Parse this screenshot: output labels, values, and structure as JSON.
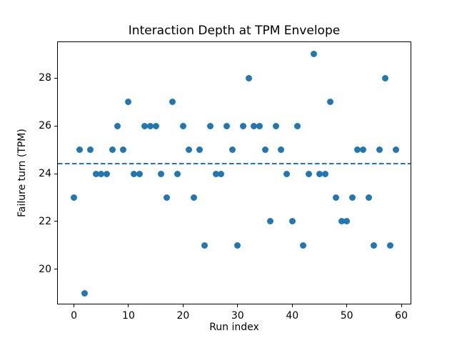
{
  "chart_data": {
    "type": "scatter",
    "title": "Interaction Depth at TPM Envelope",
    "xlabel": "Run index",
    "ylabel": "Failure turn (TPM)",
    "xlim": [
      -2.95,
      61.95
    ],
    "ylim": [
      18.5,
      29.5
    ],
    "xticks": [
      0,
      10,
      20,
      30,
      40,
      50,
      60
    ],
    "yticks": [
      20,
      22,
      24,
      26,
      28
    ],
    "grid": false,
    "legend": false,
    "marker_color": "#1f77b4",
    "marker_diameter_px": 9,
    "x": [
      0,
      1,
      2,
      3,
      4,
      5,
      6,
      7,
      8,
      9,
      10,
      11,
      12,
      13,
      14,
      15,
      16,
      17,
      18,
      19,
      20,
      21,
      22,
      23,
      24,
      25,
      26,
      27,
      28,
      29,
      30,
      31,
      32,
      33,
      34,
      35,
      36,
      37,
      38,
      39,
      40,
      41,
      42,
      43,
      44,
      45,
      46,
      47,
      48,
      49,
      50,
      51,
      52,
      53,
      54,
      55,
      56,
      57,
      58,
      59
    ],
    "y": [
      23,
      25,
      19,
      25,
      24,
      24,
      24,
      25,
      26,
      25,
      27,
      24,
      24,
      26,
      26,
      26,
      24,
      23,
      27,
      24,
      26,
      25,
      23,
      25,
      21,
      26,
      24,
      24,
      26,
      25,
      21,
      26,
      28,
      26,
      26,
      25,
      22,
      26,
      25,
      24,
      22,
      26,
      21,
      24,
      29,
      24,
      24,
      27,
      23,
      22,
      22,
      23,
      25,
      25,
      23,
      21,
      25,
      28,
      21,
      25
    ],
    "mean_line": {
      "value": 24.4167,
      "style": "dashed",
      "color": "#1f77b4"
    }
  }
}
